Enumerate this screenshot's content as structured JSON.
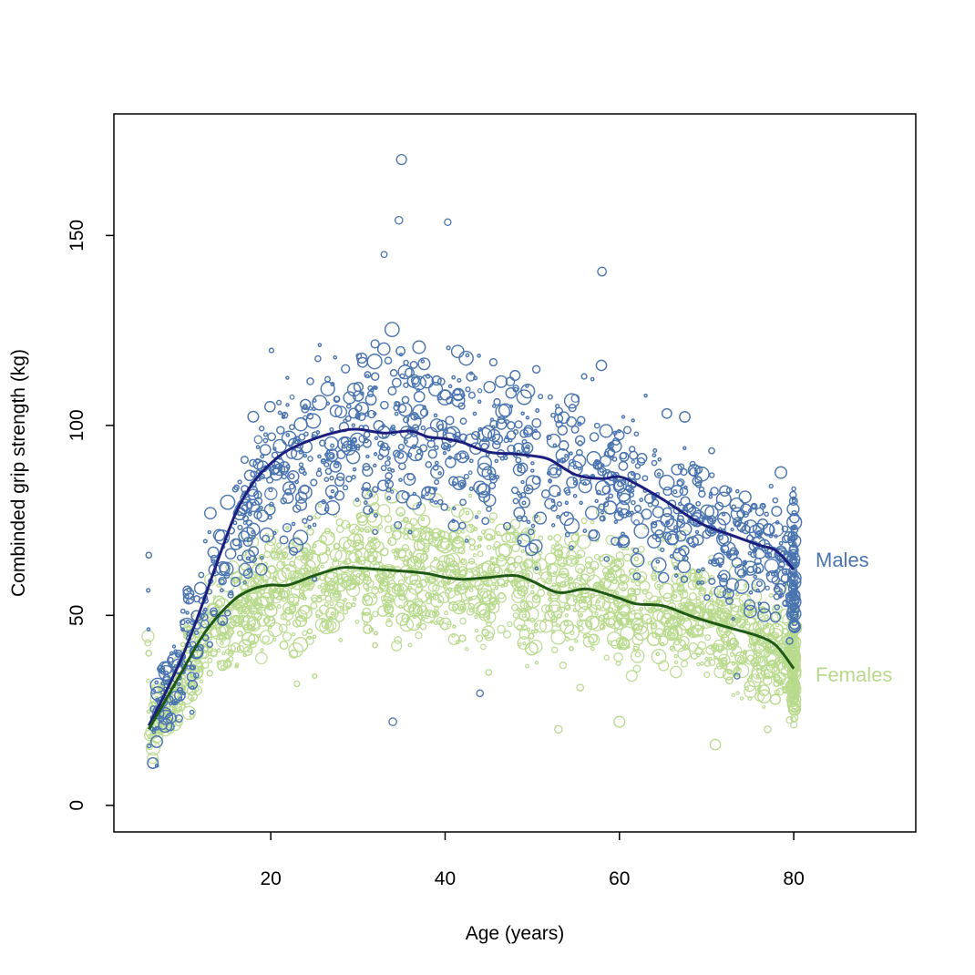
{
  "chart_data": {
    "type": "scatter",
    "xlabel": "Age (years)",
    "ylabel": "Combinded grip strength (kg)",
    "xlim": [
      2,
      94
    ],
    "ylim": [
      -7,
      182
    ],
    "x_ticks": [
      20,
      40,
      60,
      80
    ],
    "y_ticks": [
      0,
      50,
      100,
      150
    ],
    "grid": false,
    "legend": "direct labels at right end of curves",
    "series": [
      {
        "name": "Males",
        "color": "#4a74b0",
        "fit_color": "#1c1f7e",
        "fit": {
          "x": [
            6,
            8,
            10,
            12,
            14,
            16,
            18,
            20,
            22,
            25,
            28,
            30,
            33,
            36,
            38,
            40,
            42,
            45,
            48,
            50,
            52,
            55,
            58,
            60,
            62,
            65,
            68,
            70,
            73,
            76,
            78,
            80
          ],
          "y": [
            21,
            30,
            40,
            52,
            65,
            77,
            85,
            90,
            93.5,
            96.5,
            98.5,
            99,
            98,
            98.5,
            97,
            96.5,
            95.5,
            93,
            92.5,
            92,
            91,
            87,
            86,
            86.5,
            84.5,
            80.5,
            76,
            73.5,
            71,
            68.5,
            67,
            62
          ]
        },
        "scatter_band": {
          "x_range": [
            6,
            80
          ],
          "spread_points": [
            [
              6,
              20,
              8
            ],
            [
              12,
              50,
              14
            ],
            [
              20,
              90,
              18
            ],
            [
              30,
              99,
              19
            ],
            [
              40,
              96,
              19
            ],
            [
              50,
              92,
              18
            ],
            [
              60,
              86,
              17
            ],
            [
              70,
              73,
              15
            ],
            [
              80,
              62,
              14
            ]
          ]
        },
        "outliers": [
          [
            35,
            170
          ],
          [
            34.7,
            154
          ],
          [
            40.3,
            153.5
          ],
          [
            58,
            140.5
          ],
          [
            33,
            145
          ],
          [
            34,
            22
          ],
          [
            44,
            29.5
          ],
          [
            73.5,
            34
          ]
        ]
      },
      {
        "name": "Females",
        "color": "#b8d98c",
        "fit_color": "#1e5a14",
        "fit": {
          "x": [
            6,
            8,
            10,
            12,
            14,
            16,
            18,
            20,
            22,
            25,
            28,
            30,
            33,
            36,
            38,
            40,
            42,
            45,
            48,
            50,
            53,
            56,
            58,
            60,
            62,
            65,
            68,
            70,
            73,
            76,
            78,
            80
          ],
          "y": [
            20,
            28,
            36,
            44,
            50,
            54.5,
            57,
            58,
            58,
            60.5,
            62.5,
            62.5,
            62,
            61.5,
            61,
            60,
            59.5,
            60,
            60.5,
            59,
            56,
            57,
            56,
            54.5,
            53,
            52.5,
            50,
            48.5,
            46.5,
            44.5,
            42,
            36
          ]
        },
        "scatter_band": {
          "x_range": [
            6,
            80
          ],
          "spread_points": [
            [
              6,
              19,
              6
            ],
            [
              12,
              42,
              10
            ],
            [
              20,
              57,
              13
            ],
            [
              30,
              62,
              14
            ],
            [
              40,
              60,
              14
            ],
            [
              50,
              59,
              13
            ],
            [
              60,
              55,
              13
            ],
            [
              70,
              49,
              12
            ],
            [
              80,
              37,
              11
            ]
          ]
        },
        "outliers": [
          [
            23,
            32
          ],
          [
            55.5,
            31
          ],
          [
            45,
            35
          ],
          [
            77,
            20
          ],
          [
            71,
            16
          ],
          [
            53,
            20
          ],
          [
            60,
            22
          ]
        ]
      }
    ]
  }
}
